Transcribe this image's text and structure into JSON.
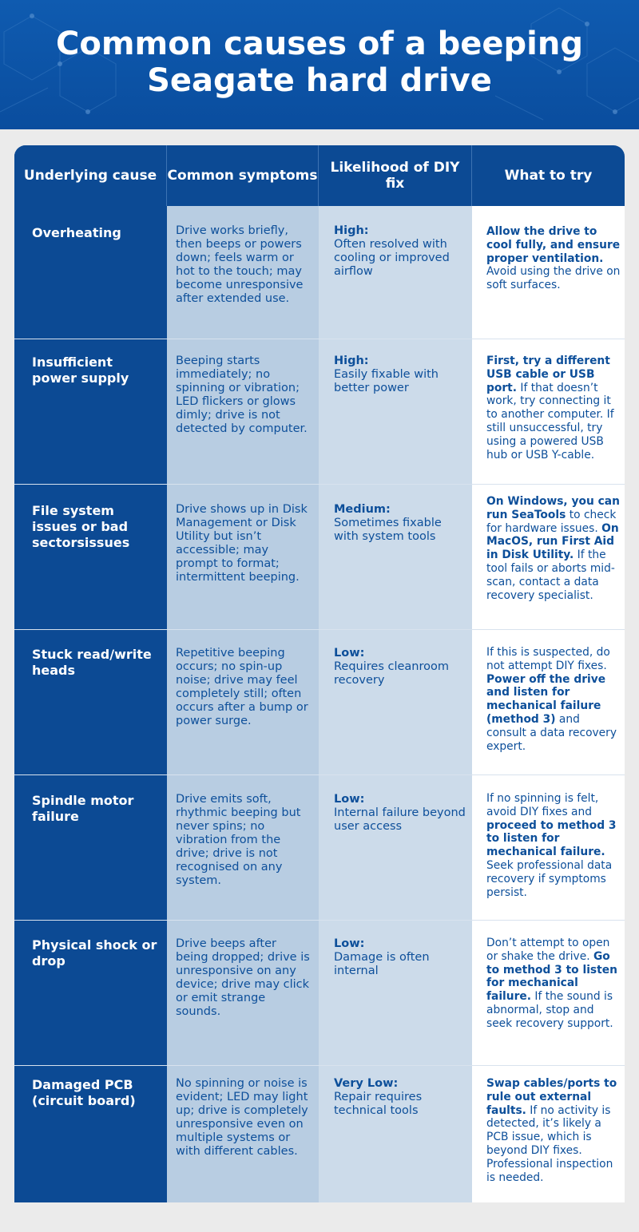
{
  "title_line1": "Common causes of a beeping",
  "title_line2": "Seagate hard drive",
  "headers": {
    "cause": "Underlying cause",
    "symptoms": "Common symptoms",
    "likelihood": "Likelihood of DIY fix",
    "try": "What to try"
  },
  "colors": {
    "header_blue": "#0f5bb0",
    "cause_column": "#0c4a94",
    "symptoms_column": "#b8cde2",
    "likelihood_column": "#ccdbea",
    "text_blue": "#0d4f9a"
  },
  "rows": [
    {
      "cause": "Overheating",
      "symptoms": "Drive works briefly, then beeps or powers down; feels warm or hot to the touch; may become unresponsive after extended use.",
      "likelihood_level": "High:",
      "likelihood_note": "Often resolved with cooling or improved airflow",
      "try_bold": "Allow the drive to cool fully, and ensure proper ventilation.",
      "try_rest": " Avoid using the drive on soft surfaces."
    },
    {
      "cause": "Insufficient power supply",
      "symptoms": "Beeping starts immediately; no spinning or vibration; LED flickers or glows dimly; drive is not detected by computer.",
      "likelihood_level": "High:",
      "likelihood_note": "Easily fixable with better power",
      "try_bold": "First, try a different USB cable or USB port.",
      "try_rest": " If that doesn’t work, try connecting it to another computer. If still unsuccessful, try using a powered USB hub or USB Y-cable."
    },
    {
      "cause": "File system issues or bad sectorsissues",
      "symptoms": "Drive shows up in Disk Management or Disk Utility but isn’t accessible; may prompt to format; intermittent beeping.",
      "likelihood_level": "Medium:",
      "likelihood_note": "Sometimes fixable with system tools",
      "try_bold": "On Windows, you can run SeaTools",
      "try_rest": " to check for hardware issues. ",
      "try_bold2": "On MacOS, run First Aid in Disk Utility.",
      "try_rest2": " If the tool fails or aborts mid-scan, contact a data recovery specialist."
    },
    {
      "cause": "Stuck read/write heads",
      "symptoms": "Repetitive beeping occurs; no spin-up noise; drive may feel completely still; often occurs after a bump or power surge.",
      "likelihood_level": "Low:",
      "likelihood_note": "Requires cleanroom recovery",
      "try_pre": "If this is suspected, do not attempt DIY fixes. ",
      "try_bold": "Power off the drive and listen for mechanical failure (method 3)",
      "try_rest": " and consult a data recovery expert."
    },
    {
      "cause": "Spindle motor failure",
      "symptoms": "Drive emits soft, rhythmic beeping but never spins; no vibration from the drive; drive is not recognised on any system.",
      "likelihood_level": "Low:",
      "likelihood_note": "Internal failure beyond user access",
      "try_pre": "If no spinning is felt, avoid DIY fixes and ",
      "try_bold": "proceed to method 3 to listen for mechanical failure.",
      "try_rest": " Seek professional data recovery if symptoms persist."
    },
    {
      "cause": "Physical shock or drop",
      "symptoms": "Drive beeps after being dropped; drive is unresponsive on any device; drive may click or emit strange sounds.",
      "likelihood_level": "Low:",
      "likelihood_note": "Damage is often internal",
      "try_pre": "Don’t attempt to open or shake the drive. ",
      "try_bold": "Go to method 3 to listen for mechanical failure.",
      "try_rest": " If the sound is abnormal, stop and seek recovery support."
    },
    {
      "cause": "Damaged PCB (circuit board)",
      "symptoms": "No spinning or noise is evident; LED may light up; drive is completely unresponsive even on multiple systems or with different cables.",
      "likelihood_level": "Very Low:",
      "likelihood_note": "Repair requires technical tools",
      "try_bold": "Swap cables/ports to rule out external faults.",
      "try_rest": " If no activity is detected, it’s likely a PCB issue, which is beyond DIY fixes. Professional inspection is needed."
    }
  ]
}
